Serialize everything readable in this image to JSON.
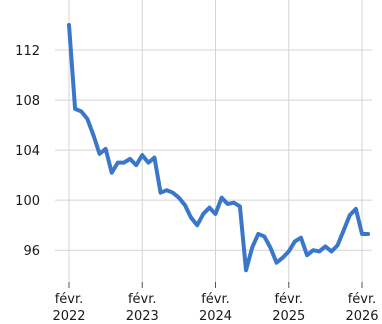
{
  "chart_data": {
    "type": "line",
    "title": "",
    "xlabel": "",
    "ylabel": "",
    "grid": true,
    "line_color": "#3a76c9",
    "xlim": [
      "2022-02",
      "2026-03"
    ],
    "ylim": [
      93.3,
      116
    ],
    "y_ticks": [
      96,
      100,
      104,
      108,
      112
    ],
    "x_ticks": [
      {
        "date": "2022-02",
        "label": [
          "févr.",
          "2022"
        ]
      },
      {
        "date": "2023-02",
        "label": [
          "févr.",
          "2023"
        ]
      },
      {
        "date": "2024-02",
        "label": [
          "févr.",
          "2024"
        ]
      },
      {
        "date": "2025-02",
        "label": [
          "févr.",
          "2025"
        ]
      },
      {
        "date": "2026-02",
        "label": [
          "févr.",
          "2026"
        ]
      }
    ],
    "series": [
      {
        "x": [
          "2022-02",
          "2022-03",
          "2022-04",
          "2022-05",
          "2022-06",
          "2022-07",
          "2022-08",
          "2022-09",
          "2022-10",
          "2022-11",
          "2022-12",
          "2023-01",
          "2023-02",
          "2023-03",
          "2023-04",
          "2023-05",
          "2023-06",
          "2023-07",
          "2023-08",
          "2023-09",
          "2023-10",
          "2023-11",
          "2023-12",
          "2024-01",
          "2024-02",
          "2024-03",
          "2024-04",
          "2024-05",
          "2024-06",
          "2024-07",
          "2024-08",
          "2024-09",
          "2024-10",
          "2024-11",
          "2024-12",
          "2025-01",
          "2025-02",
          "2025-03",
          "2025-04",
          "2025-05",
          "2025-06",
          "2025-07",
          "2025-08",
          "2025-09",
          "2025-10",
          "2025-11",
          "2025-12",
          "2026-01",
          "2026-02",
          "2026-03"
        ],
        "y": [
          114.0,
          107.3,
          107.1,
          106.5,
          105.2,
          103.7,
          104.1,
          102.2,
          103.0,
          103.0,
          103.3,
          102.8,
          103.6,
          103.0,
          103.4,
          100.6,
          100.8,
          100.6,
          100.2,
          99.6,
          98.6,
          98.0,
          98.9,
          99.4,
          98.9,
          100.2,
          99.7,
          99.8,
          99.5,
          94.4,
          96.2,
          97.3,
          97.1,
          96.2,
          95.0,
          95.4,
          95.9,
          96.7,
          97.0,
          95.6,
          96.0,
          95.9,
          96.3,
          95.9,
          96.4,
          97.6,
          98.8,
          99.3,
          97.3,
          97.3
        ]
      }
    ]
  }
}
